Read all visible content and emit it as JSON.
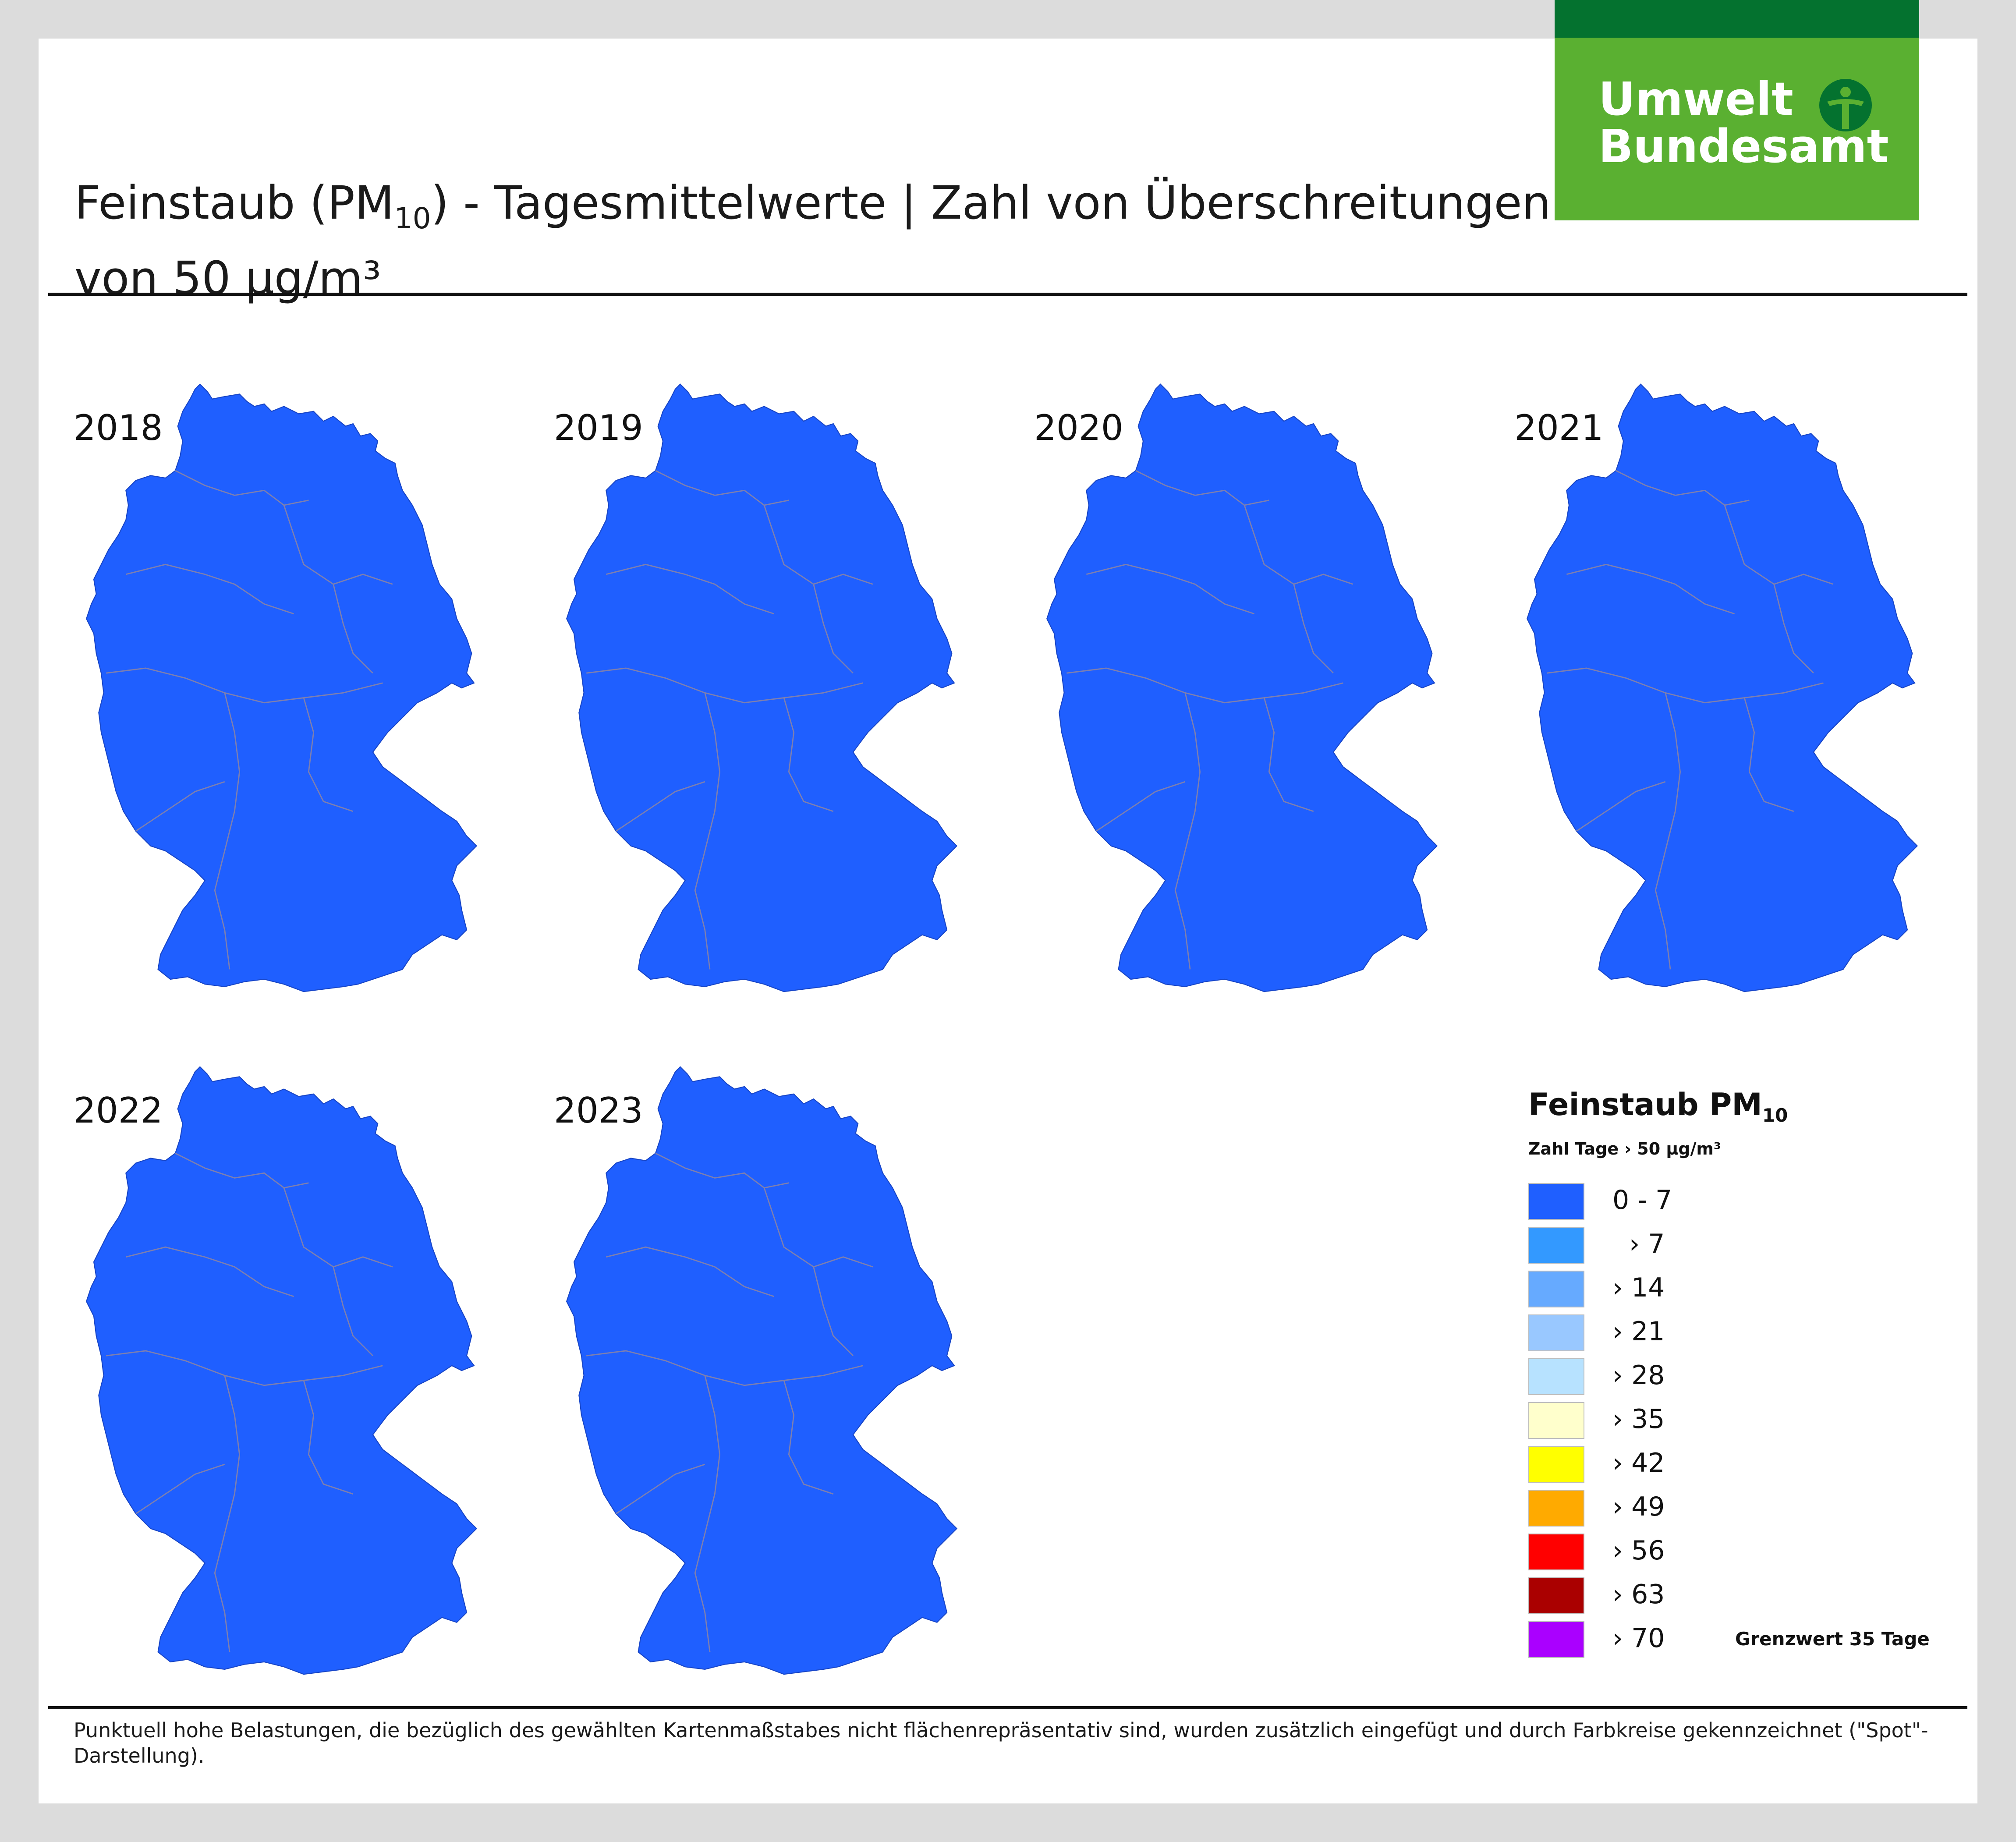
{
  "logo": {
    "line1": "Umwelt",
    "line2": "Bundesamt",
    "brand_color": "#5ab031",
    "brand_dark": "#04722f",
    "icon": "tree-person-icon"
  },
  "title": {
    "part1": "Feinstaub (PM",
    "sub": "10",
    "part2": ") - Tagesmittelwerte | Zahl von Überschreitungen",
    "line2": "von 50 µg/m³"
  },
  "maps": [
    {
      "year": "2018"
    },
    {
      "year": "2019"
    },
    {
      "year": "2020"
    },
    {
      "year": "2021"
    },
    {
      "year": "2022"
    },
    {
      "year": "2023"
    }
  ],
  "map_color": "#1f5fff",
  "legend": {
    "title": "Feinstaub PM",
    "title_sub": "10",
    "subtitle": "Zahl Tage › 50 µg/m³",
    "classes": [
      {
        "label": "0 - 7",
        "color": "#1f5fff"
      },
      {
        "label": "  › 7",
        "color": "#3399ff"
      },
      {
        "label": "› 14",
        "color": "#66aaff"
      },
      {
        "label": "› 21",
        "color": "#99c8ff"
      },
      {
        "label": "› 28",
        "color": "#b7e2ff"
      },
      {
        "label": "› 35",
        "color": "#ffffcc"
      },
      {
        "label": "› 42",
        "color": "#ffff00"
      },
      {
        "label": "› 49",
        "color": "#ffaa00"
      },
      {
        "label": "› 56",
        "color": "#ff0000"
      },
      {
        "label": "› 63",
        "color": "#aa0000"
      },
      {
        "label": "› 70",
        "color": "#aa00ff"
      }
    ],
    "limit_note": "Grenzwert 35 Tage"
  },
  "footnote": "Punktuell hohe Belastungen, die bezüglich des gewählten Kartenmaßstabes nicht flächenrepräsentativ sind, wurden zusätzlich eingefügt und durch Farbkreise gekennzeichnet (\"Spot\"-Darstellung)."
}
